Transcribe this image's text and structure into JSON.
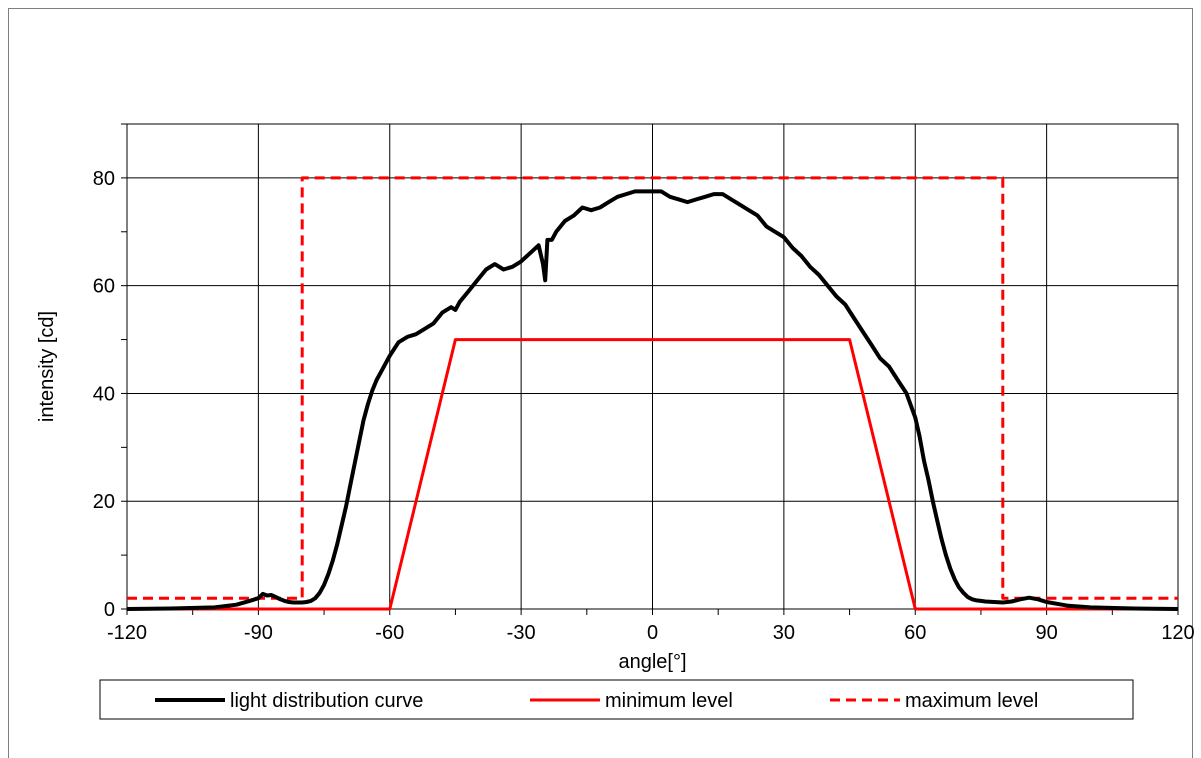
{
  "chart_data": {
    "type": "line",
    "xlabel": "angle[°]",
    "ylabel": "intensity [cd]",
    "xlim": [
      -120,
      120
    ],
    "ylim": [
      0,
      90
    ],
    "xticks": [
      -120,
      -90,
      -60,
      -30,
      0,
      30,
      60,
      90,
      120
    ],
    "yticks": [
      0,
      20,
      40,
      60,
      80
    ],
    "grid": true,
    "legend_position": "bottom",
    "series": [
      {
        "name": "light distribution curve",
        "color": "#000000",
        "style": "solid",
        "x": [
          -120,
          -110,
          -100,
          -95,
          -92,
          -90,
          -89,
          -88,
          -87,
          -86,
          -85,
          -84,
          -83,
          -82,
          -81,
          -80,
          -79,
          -78,
          -77,
          -76,
          -75,
          -74,
          -73,
          -72,
          -71,
          -70,
          -69,
          -68,
          -67,
          -66,
          -65,
          -64,
          -63,
          -62,
          -61,
          -60,
          -58,
          -56,
          -54,
          -52,
          -50,
          -48,
          -46,
          -45,
          -44,
          -42,
          -40,
          -38,
          -36,
          -34,
          -32,
          -30,
          -28,
          -26,
          -25,
          -24.5,
          -24,
          -23,
          -22,
          -20,
          -18,
          -16,
          -14,
          -12,
          -10,
          -8,
          -6,
          -4,
          -2,
          0,
          2,
          4,
          6,
          8,
          10,
          12,
          14,
          16,
          18,
          20,
          22,
          24,
          26,
          28,
          30,
          32,
          34,
          36,
          38,
          40,
          42,
          44,
          46,
          48,
          50,
          52,
          54,
          56,
          58,
          60,
          61,
          62,
          63,
          64,
          65,
          66,
          67,
          68,
          69,
          70,
          71,
          72,
          73,
          74,
          75,
          76,
          78,
          80,
          82,
          84,
          86,
          88,
          90,
          95,
          100,
          110,
          120
        ],
        "y": [
          0,
          0.1,
          0.3,
          0.8,
          1.5,
          2.0,
          2.8,
          2.5,
          2.6,
          2.2,
          1.8,
          1.5,
          1.3,
          1.2,
          1.2,
          1.2,
          1.3,
          1.5,
          2.0,
          3.0,
          4.5,
          6.5,
          9.0,
          12.0,
          15.5,
          19.0,
          23.0,
          27.0,
          31.0,
          35.0,
          38.0,
          40.5,
          42.5,
          44.0,
          45.5,
          47.0,
          49.5,
          50.5,
          51.0,
          52.0,
          53.0,
          55.0,
          56.0,
          55.5,
          57.0,
          59.0,
          61.0,
          63.0,
          64.0,
          63.0,
          63.5,
          64.5,
          66.0,
          67.5,
          64.0,
          61.0,
          68.5,
          68.5,
          70.0,
          72.0,
          73.0,
          74.5,
          74.0,
          74.5,
          75.5,
          76.5,
          77.0,
          77.5,
          77.5,
          77.5,
          77.5,
          76.5,
          76.0,
          75.5,
          76.0,
          76.5,
          77.0,
          77.0,
          76.0,
          75.0,
          74.0,
          73.0,
          71.0,
          70.0,
          69.0,
          67.0,
          65.5,
          63.5,
          62.0,
          60.0,
          58.0,
          56.5,
          54.0,
          51.5,
          49.0,
          46.5,
          45.0,
          42.5,
          40.0,
          35.5,
          32.0,
          27.5,
          24.0,
          20.0,
          16.5,
          13.0,
          10.0,
          7.5,
          5.5,
          4.0,
          3.0,
          2.2,
          1.8,
          1.6,
          1.5,
          1.4,
          1.3,
          1.2,
          1.4,
          1.8,
          2.1,
          1.8,
          1.3,
          0.6,
          0.3,
          0.1,
          0.0
        ]
      },
      {
        "name": "minimum level",
        "color": "#ff0000",
        "style": "solid",
        "x": [
          -120,
          -60,
          -45,
          45,
          60,
          120
        ],
        "y": [
          0,
          0,
          50,
          50,
          0,
          0
        ]
      },
      {
        "name": "maximum level",
        "color": "#ff0000",
        "style": "dashed",
        "x": [
          -120,
          -80,
          -80,
          80,
          80,
          120
        ],
        "y": [
          2,
          2,
          80,
          80,
          2,
          2
        ]
      }
    ]
  }
}
